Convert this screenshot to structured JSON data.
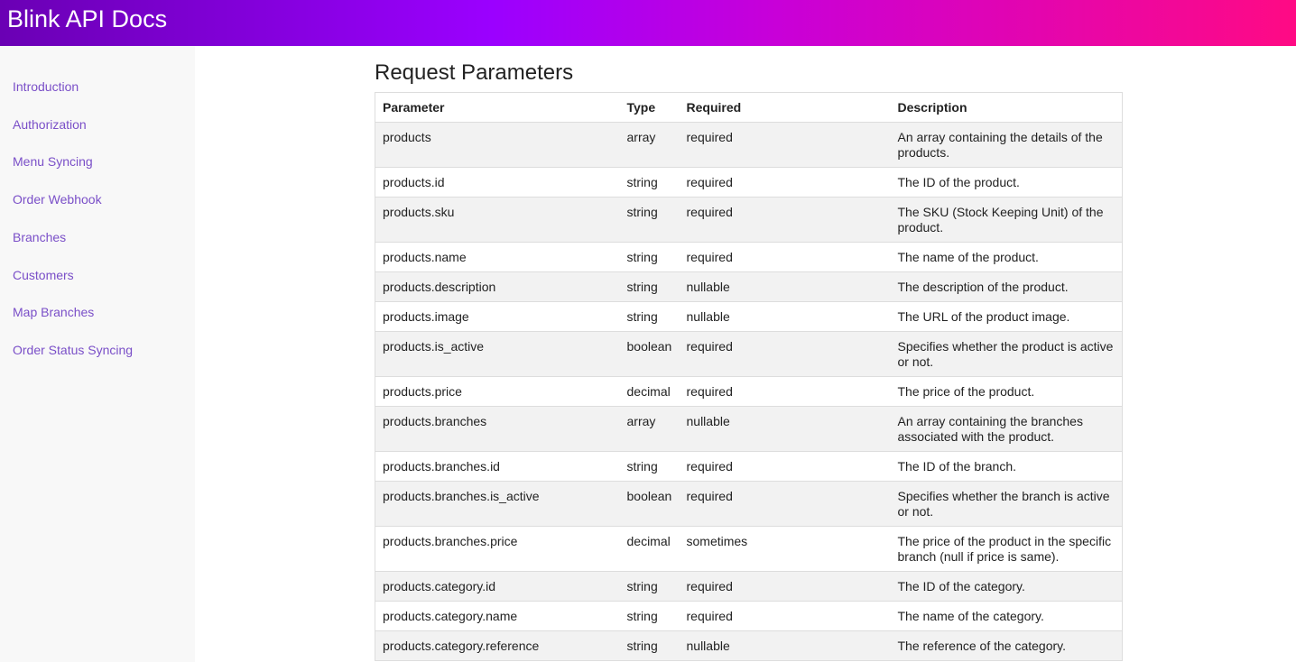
{
  "header": {
    "title": "Blink API Docs"
  },
  "sidebar": {
    "links": [
      "Introduction",
      "Authorization",
      "Menu Syncing",
      "Order Webhook",
      "Branches",
      "Customers",
      "Map Branches",
      "Order Status Syncing"
    ]
  },
  "section": {
    "title": "Request Parameters"
  },
  "table": {
    "columns": [
      "Parameter",
      "Type",
      "Required",
      "Description"
    ],
    "rows": [
      [
        "products",
        "array",
        "required",
        "An array containing the details of the products."
      ],
      [
        "products.id",
        "string",
        "required",
        "The ID of the product."
      ],
      [
        "products.sku",
        "string",
        "required",
        "The SKU (Stock Keeping Unit) of the product."
      ],
      [
        "products.name",
        "string",
        "required",
        "The name of the product."
      ],
      [
        "products.description",
        "string",
        "nullable",
        "The description of the product."
      ],
      [
        "products.image",
        "string",
        "nullable",
        "The URL of the product image."
      ],
      [
        "products.is_active",
        "boolean",
        "required",
        "Specifies whether the product is active or not."
      ],
      [
        "products.price",
        "decimal",
        "required",
        "The price of the product."
      ],
      [
        "products.branches",
        "array",
        "nullable",
        "An array containing the branches associated with the product."
      ],
      [
        "products.branches.id",
        "string",
        "required",
        "The ID of the branch."
      ],
      [
        "products.branches.is_active",
        "boolean",
        "required",
        "Specifies whether the branch is active or not."
      ],
      [
        "products.branches.price",
        "decimal",
        "sometimes",
        "The price of the product in the specific branch (null if price is same)."
      ],
      [
        "products.category.id",
        "string",
        "required",
        "The ID of the category."
      ],
      [
        "products.category.name",
        "string",
        "required",
        "The name of the category."
      ],
      [
        "products.category.reference",
        "string",
        "nullable",
        "The reference of the category."
      ]
    ]
  }
}
